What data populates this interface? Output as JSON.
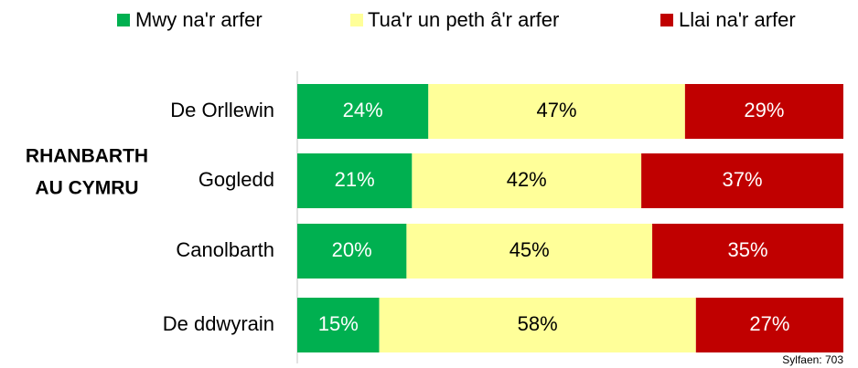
{
  "chart_data": {
    "type": "stacked_barh",
    "group_label": [
      "RHANBARTH",
      "AU CYMRU"
    ],
    "categories": [
      "De Orllewin",
      "Gogledd",
      "Canolbarth",
      "De ddwyrain"
    ],
    "series": [
      {
        "name": "Mwy na'r arfer",
        "color": "#00b050",
        "label_color": "#ffffff",
        "values": [
          24,
          21,
          20,
          15
        ],
        "value_labels": [
          "24%",
          "21%",
          "20%",
          "15%"
        ]
      },
      {
        "name": "Tua'r un peth â'r arfer",
        "color": "#ffff99",
        "label_color": "#000000",
        "values": [
          47,
          42,
          45,
          58
        ],
        "value_labels": [
          "47%",
          "42%",
          "45%",
          "58%"
        ]
      },
      {
        "name": "Llai na'r arfer",
        "color": "#c00000",
        "label_color": "#ffffff",
        "values": [
          29,
          37,
          35,
          27
        ],
        "value_labels": [
          "29%",
          "37%",
          "35%",
          "27%"
        ]
      }
    ],
    "xlim": [
      0,
      100
    ],
    "legend": "top",
    "footnote": "Sylfaen: 703"
  }
}
